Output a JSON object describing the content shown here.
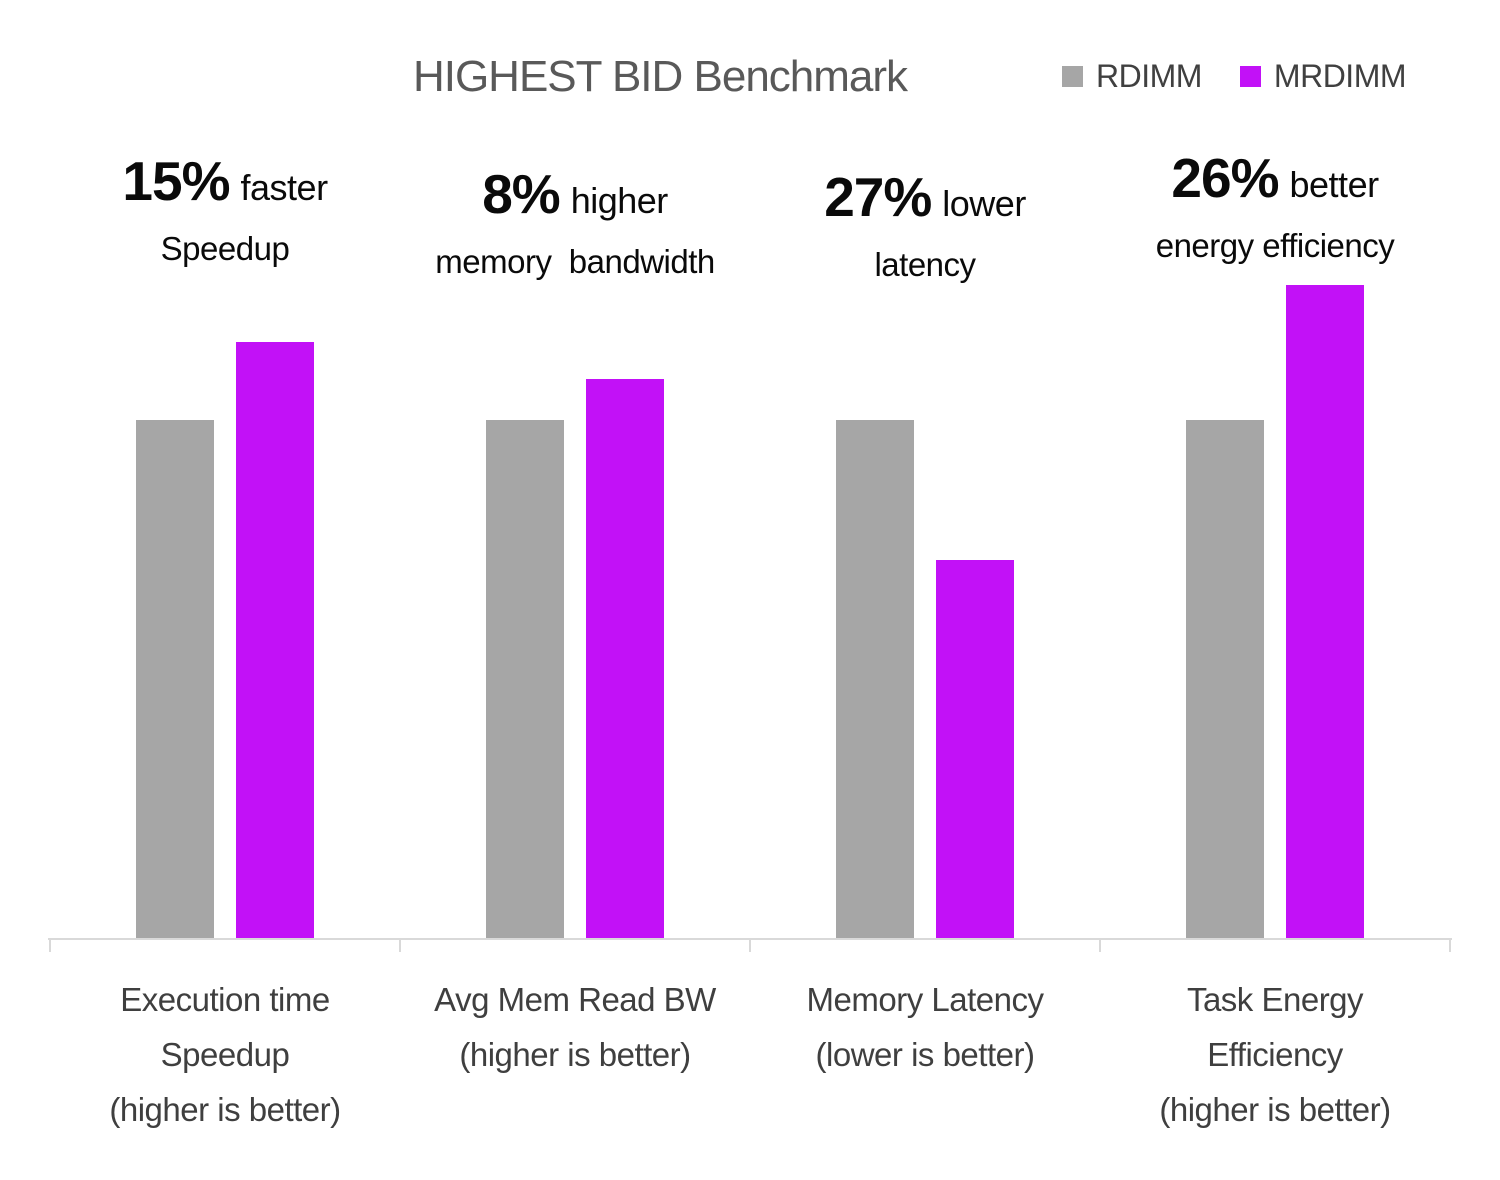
{
  "title": "HIGHEST BID Benchmark",
  "legend": [
    {
      "label": "RDIMM",
      "color": "#A6A6A6"
    },
    {
      "label": "MRDIMM",
      "color": "#C211F7"
    }
  ],
  "annotations": [
    {
      "percent": "15%",
      "suffix": "faster",
      "line2": "Speedup"
    },
    {
      "percent": "8%",
      "suffix": "higher",
      "line2": "memory  bandwidth"
    },
    {
      "percent": "27%",
      "suffix": "lower",
      "line2": "latency"
    },
    {
      "percent": "26%",
      "suffix": "better",
      "line2": "energy efficiency"
    }
  ],
  "chart_data": {
    "type": "bar",
    "title": "HIGHEST BID Benchmark",
    "categories": [
      "Execution time Speedup (higher is better)",
      "Avg Mem Read BW (higher is better)",
      "Memory Latency (lower is better)",
      "Task Energy Efficiency (higher is better)"
    ],
    "category_lines": [
      [
        "Execution time",
        "Speedup",
        "(higher is better)"
      ],
      [
        "Avg Mem Read BW",
        "(higher is better)"
      ],
      [
        "Memory Latency",
        "(lower is better)"
      ],
      [
        "Task Energy",
        "Efficiency",
        "(higher is better)"
      ]
    ],
    "series": [
      {
        "name": "RDIMM",
        "color": "#A6A6A6",
        "values": [
          1.0,
          1.0,
          1.0,
          1.0
        ]
      },
      {
        "name": "MRDIMM",
        "color": "#C211F7",
        "values": [
          1.15,
          1.08,
          0.73,
          1.26
        ]
      }
    ],
    "xlabel": "",
    "ylabel": "",
    "ylim": [
      0,
      1.3
    ],
    "grid": false,
    "value_axis": "hidden",
    "legend_position": "top-right"
  },
  "colors": {
    "axis_line": "#D9D9D9",
    "title_text": "#595959",
    "category_text": "#3f3f3f",
    "legend_text": "#404040",
    "annotation_text": "#0a0a0a"
  }
}
